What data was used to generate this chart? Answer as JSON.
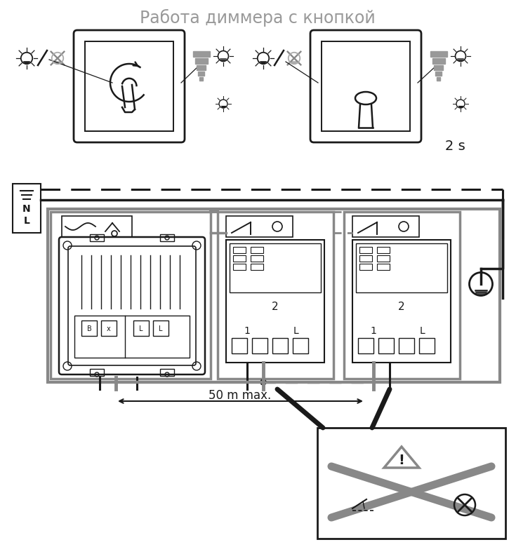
{
  "title": "Работа диммера с кнопкой",
  "title_color": "#999999",
  "bg_color": "#ffffff",
  "border_color": "#1a1a1a",
  "gray_color": "#888888",
  "med_gray": "#aaaaaa",
  "label_50m": "50 m max.",
  "label_2s": "2 s",
  "label_N": "N",
  "label_L": "L",
  "label_B": "B",
  "label_x": "x",
  "label_1": "1",
  "label_2": "2"
}
